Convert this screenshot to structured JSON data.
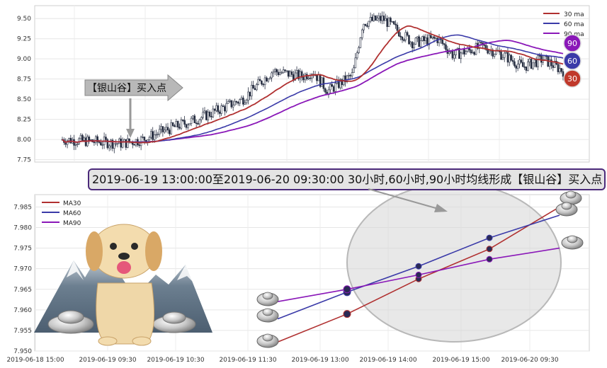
{
  "chart_data": [
    {
      "type": "candlestick",
      "ylim": [
        7.72,
        9.66
      ],
      "yticks": [
        "9.50",
        "9.25",
        "9.00",
        "8.75",
        "8.50",
        "8.25",
        "8.00",
        "7.75"
      ],
      "candle_count": 300,
      "legend": [
        "30 ma",
        "60 ma",
        "90 ma"
      ],
      "colors": {
        "ma30": "#b03030",
        "ma60": "#3a3aa8",
        "ma90": "#8a18b8",
        "candle": "#2b3245"
      },
      "ma_badges": [
        "90",
        "60",
        "30"
      ],
      "callout": "【银山谷】买入点"
    },
    {
      "type": "line",
      "x": [
        "2019-06-18 15:00",
        "2019-06-19 09:30",
        "2019-06-19 10:30",
        "2019-06-19 11:30",
        "2019-06-19 13:00",
        "2019-06-19 14:00",
        "2019-06-19 15:00",
        "2019-06-20 09:30"
      ],
      "ylim": [
        7.95,
        7.988
      ],
      "yticks": [
        "7.985",
        "7.980",
        "7.975",
        "7.970",
        "7.965",
        "7.960",
        "7.955",
        "7.950"
      ],
      "series": [
        {
          "name": "MA30",
          "color": "#b03030",
          "values": [
            null,
            null,
            null,
            7.9522,
            7.959,
            7.9675,
            7.9748,
            7.985
          ]
        },
        {
          "name": "MA60",
          "color": "#3a3aa8",
          "values": [
            null,
            null,
            null,
            7.9578,
            7.9643,
            7.9706,
            7.9775,
            7.983
          ]
        },
        {
          "name": "MA90",
          "color": "#8a18b8",
          "values": [
            null,
            null,
            null,
            7.962,
            7.965,
            7.9685,
            7.9723,
            7.975
          ]
        }
      ],
      "banner": "2019-06-19 13:00:00至2019-06-20 09:30:00 30小时,60小时,90小时均线形成【银山谷】买入点"
    }
  ]
}
